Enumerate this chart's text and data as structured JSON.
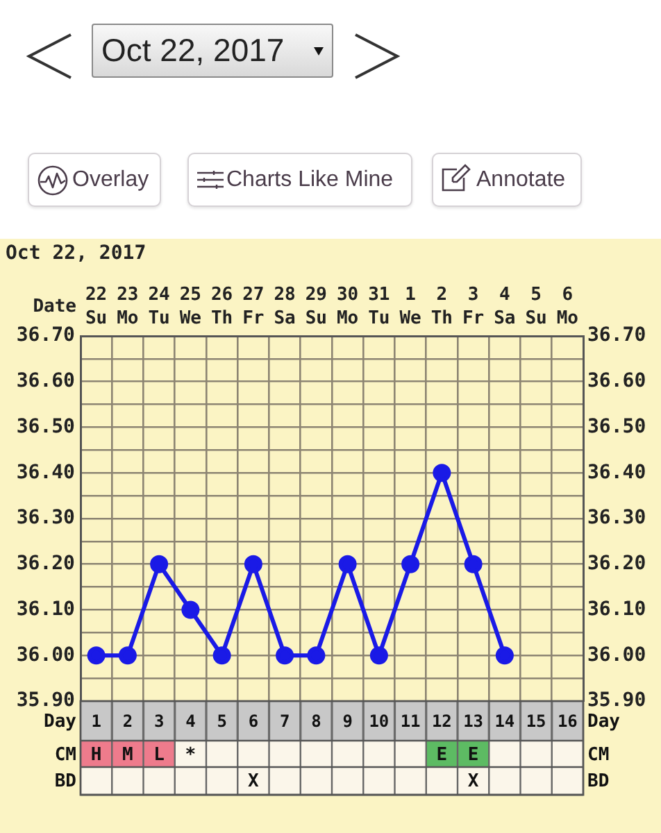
{
  "chart_data": {
    "type": "line",
    "title": "Oct 22, 2017",
    "xlabel": "Date",
    "categories": [
      "22\nSu",
      "23\nMo",
      "24\nTu",
      "25\nWe",
      "26\nTh",
      "27\nFr",
      "28\nSa",
      "29\nSu",
      "30\nMo",
      "31\nTu",
      "1\nWe",
      "2\nTh",
      "3\nFr",
      "4\nSa",
      "5\nSu",
      "6\nMo"
    ],
    "values": [
      36.0,
      36.0,
      36.2,
      36.1,
      36.0,
      36.2,
      36.0,
      36.0,
      36.2,
      36.0,
      36.2,
      36.4,
      36.2,
      36.0,
      null,
      null
    ],
    "color": "#1a1ae6",
    "marker": "circle",
    "line_style": "solid",
    "grid": true,
    "ylim": [
      35.9,
      36.7
    ],
    "yticks": [
      {
        "value": 35.9,
        "label": "35.90"
      },
      {
        "value": 35.95,
        "label": null
      },
      {
        "value": 36.0,
        "label": "36.00"
      },
      {
        "value": 36.05,
        "label": null
      },
      {
        "value": 36.1,
        "label": "36.10"
      },
      {
        "value": 36.15,
        "label": null
      },
      {
        "value": 36.2,
        "label": "36.20"
      },
      {
        "value": 36.25,
        "label": null
      },
      {
        "value": 36.3,
        "label": "36.30"
      },
      {
        "value": 36.35,
        "label": null
      },
      {
        "value": 36.4,
        "label": "36.40"
      },
      {
        "value": 36.45,
        "label": null
      },
      {
        "value": 36.5,
        "label": "36.50"
      },
      {
        "value": 36.55,
        "label": null
      },
      {
        "value": 36.6,
        "label": "36.60"
      },
      {
        "value": 36.65,
        "label": null
      },
      {
        "value": 36.7,
        "label": "36.70"
      }
    ],
    "y2lim": [
      35.9,
      36.7
    ],
    "y2ticks": [
      {
        "value": 35.9,
        "label": "35.90"
      },
      {
        "value": 35.95,
        "label": null
      },
      {
        "value": 36.0,
        "label": "36.00"
      },
      {
        "value": 36.05,
        "label": null
      },
      {
        "value": 36.1,
        "label": "36.10"
      },
      {
        "value": 36.15,
        "label": null
      },
      {
        "value": 36.2,
        "label": "36.20"
      },
      {
        "value": 36.25,
        "label": null
      },
      {
        "value": 36.3,
        "label": "36.30"
      },
      {
        "value": 36.35,
        "label": null
      },
      {
        "value": 36.4,
        "label": "36.40"
      },
      {
        "value": 36.45,
        "label": null
      },
      {
        "value": 36.5,
        "label": "36.50"
      },
      {
        "value": 36.55,
        "label": null
      },
      {
        "value": 36.6,
        "label": "36.60"
      },
      {
        "value": 36.65,
        "label": null
      },
      {
        "value": 36.7,
        "label": "36.70"
      }
    ],
    "annotations": [
      "Oct 22, 2017",
      "Overlay",
      "Charts Like Mine",
      "Annotate",
      "Day",
      "1",
      "2",
      "3",
      "4",
      "5",
      "6",
      "7",
      "8",
      "9",
      "10",
      "11",
      "12",
      "13",
      "14",
      "15",
      "16",
      "Day",
      "CM",
      "H",
      "M",
      "L",
      "*",
      "E",
      "E",
      "CM",
      "BD",
      "X",
      "X",
      "BD"
    ]
  }
}
